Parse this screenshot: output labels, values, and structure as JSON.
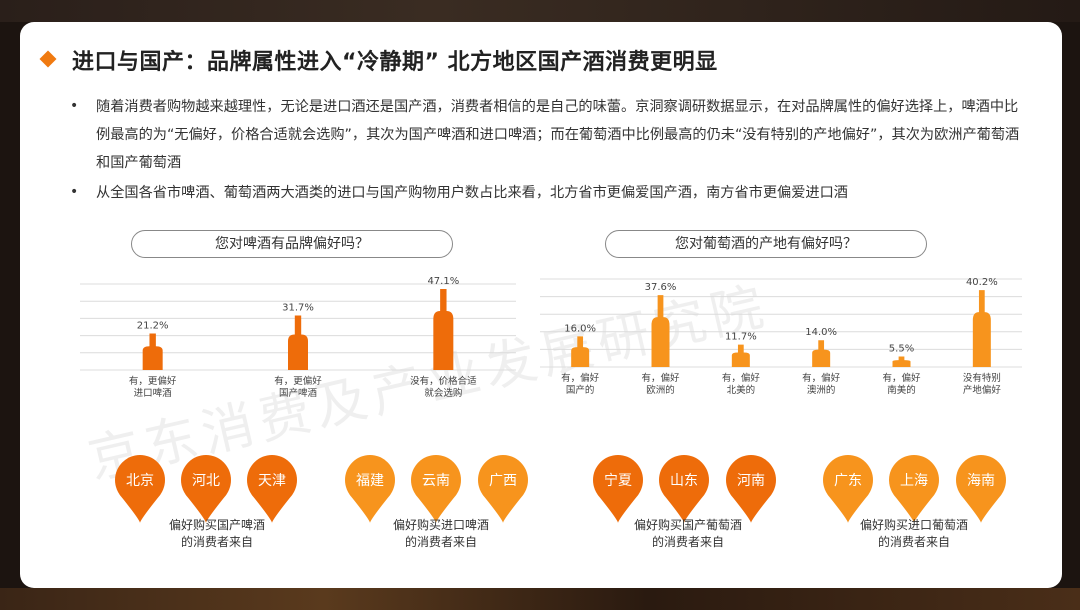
{
  "title": "进口与国产：品牌属性进入“冷静期” 北方地区国产酒消费更明显",
  "bullets": [
    "随着消费者购物越来越理性，无论是进口酒还是国产酒，消费者相信的是自己的味蕾。京洞察调研数据显示，在对品牌属性的偏好选择上，啤酒中比例最高的为“无偏好，价格合适就会选购”，其次为国产啤酒和进口啤酒；而在葡萄酒中比例最高的仍未“没有特别的产地偏好”，其次为欧洲产葡萄酒和国产葡萄酒",
    "从全国各省市啤酒、葡萄酒两大酒类的进口与国产购物用户数占比来看，北方省市更偏爱国产酒，南方省市更偏爱进口酒"
  ],
  "watermark": "京东消费及产业发展研究院",
  "chart_data": [
    {
      "type": "bar",
      "title": "您对啤酒有品牌偏好吗？",
      "categories": [
        [
          "有，更偏好",
          "进口啤酒"
        ],
        [
          "有，更偏好",
          "国产啤酒"
        ],
        [
          "没有，价格合适",
          "就会选购"
        ]
      ],
      "values": [
        21.2,
        31.7,
        47.1
      ],
      "value_labels": [
        "21.2%",
        "31.7%",
        "47.1%"
      ],
      "mark_shape": "bottle",
      "color": "#ee6c0a",
      "grid": true
    },
    {
      "type": "bar",
      "title": "您对葡萄酒的产地有偏好吗？",
      "categories": [
        [
          "有，偏好",
          "国产的"
        ],
        [
          "有，偏好",
          "欧洲的"
        ],
        [
          "有，偏好",
          "北美的"
        ],
        [
          "有，偏好",
          "澳洲的"
        ],
        [
          "有，偏好",
          "南美的"
        ],
        [
          "没有特别",
          "产地偏好"
        ]
      ],
      "values": [
        16.0,
        37.6,
        11.7,
        14.0,
        5.5,
        40.2
      ],
      "value_labels": [
        "16.0%",
        "37.6%",
        "11.7%",
        "14.0%",
        "5.5%",
        "40.2%"
      ],
      "mark_shape": "bottle",
      "color": "#f7941d",
      "grid": true
    }
  ],
  "pin_groups": [
    {
      "cities": [
        "北京",
        "河北",
        "天津"
      ],
      "caption": [
        "偏好购买国产啤酒",
        "的消费者来自"
      ],
      "color": "#ee6c0a"
    },
    {
      "cities": [
        "福建",
        "云南",
        "广西"
      ],
      "caption": [
        "偏好购买进口啤酒",
        "的消费者来自"
      ],
      "color": "#f7941d"
    },
    {
      "cities": [
        "宁夏",
        "山东",
        "河南"
      ],
      "caption": [
        "偏好购买国产葡萄酒",
        "的消费者来自"
      ],
      "color": "#ee6c0a"
    },
    {
      "cities": [
        "广东",
        "上海",
        "海南"
      ],
      "caption": [
        "偏好购买进口葡萄酒",
        "的消费者来自"
      ],
      "color": "#f7941d"
    }
  ]
}
